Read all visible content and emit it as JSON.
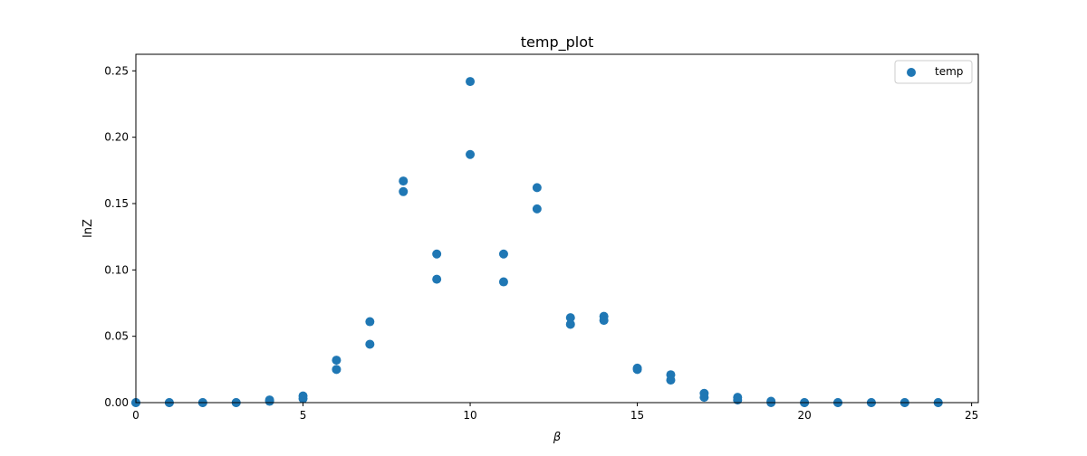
{
  "chart_data": {
    "type": "scatter",
    "title": "temp_plot",
    "xlabel": "β",
    "ylabel": "lnZ",
    "xlim": [
      0,
      25.2
    ],
    "ylim": [
      0,
      0.2625
    ],
    "x_ticks": [
      0,
      5,
      10,
      15,
      20,
      25
    ],
    "x_tick_labels": [
      "0",
      "5",
      "10",
      "15",
      "20",
      "25"
    ],
    "y_ticks": [
      0,
      0.05,
      0.1,
      0.15,
      0.2,
      0.25
    ],
    "y_tick_labels": [
      "0.00",
      "0.05",
      "0.10",
      "0.15",
      "0.20",
      "0.25"
    ],
    "grid": false,
    "legend": {
      "placement": "top-right",
      "entries": [
        "temp"
      ]
    },
    "series": [
      {
        "name": "temp",
        "color": "#1f77b4",
        "points": [
          [
            0,
            0.0
          ],
          [
            0,
            0.0
          ],
          [
            1,
            0.0
          ],
          [
            1,
            0.0
          ],
          [
            2,
            0.0
          ],
          [
            2,
            0.0
          ],
          [
            3,
            0.0
          ],
          [
            3,
            0.0
          ],
          [
            4,
            0.002
          ],
          [
            4,
            0.001
          ],
          [
            5,
            0.005
          ],
          [
            5,
            0.003
          ],
          [
            6,
            0.032
          ],
          [
            6,
            0.025
          ],
          [
            7,
            0.061
          ],
          [
            7,
            0.044
          ],
          [
            8,
            0.167
          ],
          [
            8,
            0.159
          ],
          [
            9,
            0.112
          ],
          [
            9,
            0.093
          ],
          [
            10,
            0.242
          ],
          [
            10,
            0.187
          ],
          [
            11,
            0.112
          ],
          [
            11,
            0.091
          ],
          [
            12,
            0.162
          ],
          [
            12,
            0.146
          ],
          [
            13,
            0.064
          ],
          [
            13,
            0.059
          ],
          [
            14,
            0.065
          ],
          [
            14,
            0.062
          ],
          [
            15,
            0.026
          ],
          [
            15,
            0.025
          ],
          [
            16,
            0.021
          ],
          [
            16,
            0.017
          ],
          [
            17,
            0.007
          ],
          [
            17,
            0.004
          ],
          [
            18,
            0.004
          ],
          [
            18,
            0.002
          ],
          [
            19,
            0.001
          ],
          [
            19,
            0.0
          ],
          [
            20,
            0.0
          ],
          [
            20,
            0.0
          ],
          [
            21,
            0.0
          ],
          [
            21,
            0.0
          ],
          [
            22,
            0.0
          ],
          [
            22,
            0.0
          ],
          [
            23,
            0.0
          ],
          [
            23,
            0.0
          ],
          [
            24,
            0.0
          ],
          [
            24,
            0.0
          ]
        ]
      }
    ]
  }
}
